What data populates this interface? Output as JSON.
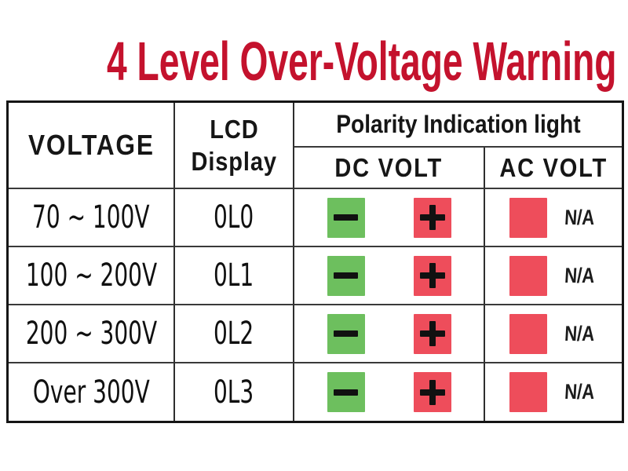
{
  "title": "4 Level Over-Voltage Warning",
  "colors": {
    "title_red": "#c4122d",
    "green_light": "#6dbf5e",
    "red_light": "#ee4d5b",
    "table_border": "#151515",
    "text": "#161616"
  },
  "table": {
    "header": {
      "voltage": "VOLTAGE",
      "lcd_line1": "LCD",
      "lcd_line2": "Display",
      "polarity_group": "Polarity Indication light",
      "dc_volt": "DC VOLT",
      "ac_volt": "AC VOLT"
    },
    "icons": {
      "dc_negative": "minus-icon",
      "dc_positive": "plus-icon",
      "ac_light": "red-square-icon"
    },
    "rows": [
      {
        "voltage": "70 ~ 100V",
        "lcd": "0L0",
        "ac_label": "N/A"
      },
      {
        "voltage": "100 ~ 200V",
        "lcd": "0L1",
        "ac_label": "N/A"
      },
      {
        "voltage": "200 ~ 300V",
        "lcd": "0L2",
        "ac_label": "N/A"
      },
      {
        "voltage": "Over 300V",
        "lcd": "0L3",
        "ac_label": "N/A"
      }
    ]
  },
  "chart_data": {
    "type": "table",
    "title": "4 Level Over-Voltage Warning",
    "column_groups": [
      {
        "label": "Polarity Indication light",
        "spans": [
          "DC VOLT",
          "AC VOLT"
        ]
      }
    ],
    "columns": [
      "VOLTAGE",
      "LCD Display",
      "DC VOLT",
      "AC VOLT"
    ],
    "rows": [
      [
        "70 ~ 100V",
        "0L0",
        "minus light (green) + plus light (red)",
        "red light, N/A"
      ],
      [
        "100 ~ 200V",
        "0L1",
        "minus light (green) + plus light (red)",
        "red light, N/A"
      ],
      [
        "200 ~ 300V",
        "0L2",
        "minus light (green) + plus light (red)",
        "red light, N/A"
      ],
      [
        "Over 300V",
        "0L3",
        "minus light (green) + plus light (red)",
        "red light, N/A"
      ]
    ],
    "legend": {
      "green": "DC negative polarity indicator",
      "red": "DC positive polarity / AC indicator"
    }
  }
}
